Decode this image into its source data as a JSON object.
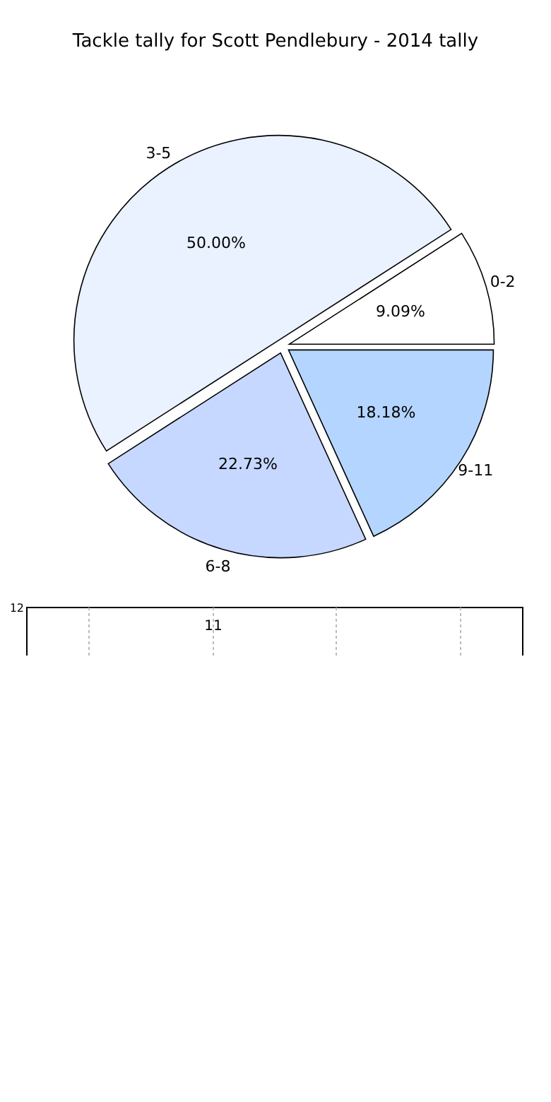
{
  "chart_data": [
    {
      "type": "pie",
      "title": "Tackle tally for Scott Pendlebury - 2014 tally",
      "categories": [
        "0-2",
        "3-5",
        "6-8",
        "9-11"
      ],
      "values": [
        9.09,
        50.0,
        22.73,
        18.18
      ],
      "value_labels": [
        "9.09%",
        "50.00%",
        "22.73%",
        "18.18%"
      ],
      "colors": [
        "#ffffff",
        "#eaf1ff",
        "#c6d8ff",
        "#b3d5ff"
      ]
    },
    {
      "type": "other",
      "annotations": [
        "12",
        "11"
      ]
    }
  ]
}
